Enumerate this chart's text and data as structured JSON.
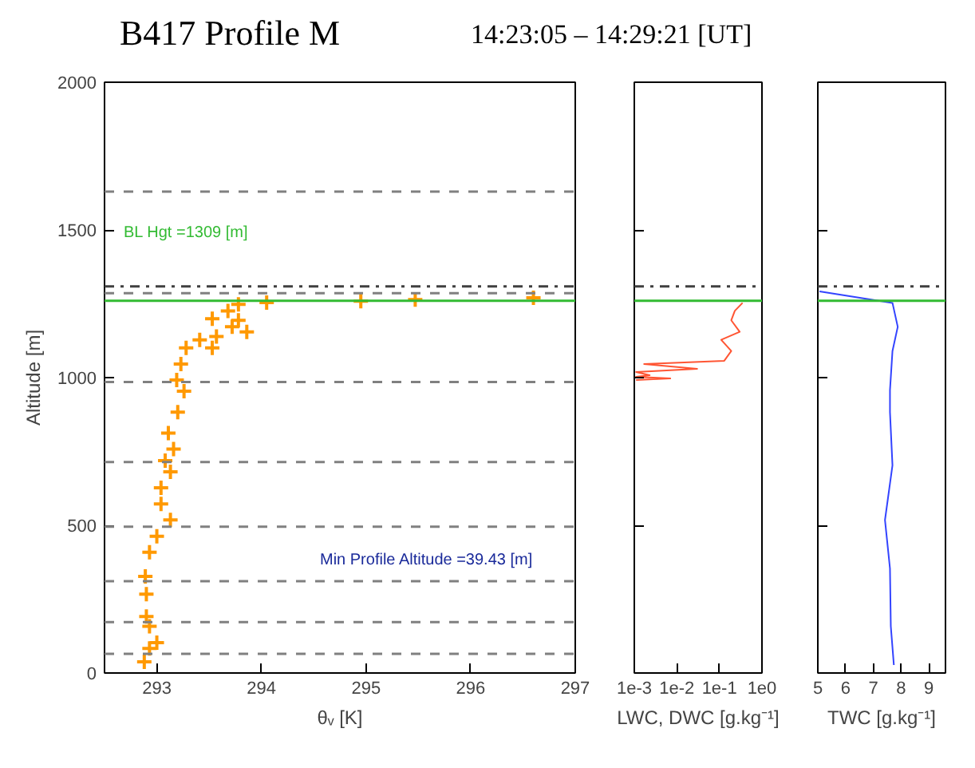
{
  "chart_data": [
    {
      "type": "scatter",
      "title": "B417 Profile M",
      "subtitle": "14:23:05 – 14:29:21 [UT]",
      "xlabel": "θᵥ [K]",
      "ylabel": "Altitude [m]",
      "marker": "cross",
      "grid": false,
      "xlim": [
        292.5,
        297
      ],
      "xticks": [
        293,
        294,
        295,
        296,
        297
      ],
      "ylim": [
        0,
        2000
      ],
      "yticks": [
        0,
        500,
        1000,
        1500,
        2000
      ],
      "series": [
        {
          "color": "#ff9900",
          "x": [
            292.88,
            292.93,
            293.0,
            292.93,
            292.9,
            292.9,
            292.89,
            292.93,
            293.0,
            293.13,
            293.04,
            293.04,
            293.13,
            293.08,
            293.16,
            293.11,
            293.2,
            293.26,
            293.19,
            293.23,
            293.28,
            293.41,
            293.53,
            293.57,
            293.72,
            293.86,
            293.78,
            293.53,
            293.68,
            293.78,
            294.05,
            294.95,
            295.47,
            296.6
          ],
          "values": [
            38,
            83,
            103,
            158,
            191,
            267,
            327,
            409,
            463,
            518,
            572,
            627,
            681,
            719,
            758,
            812,
            883,
            954,
            992,
            1046,
            1101,
            1128,
            1101,
            1139,
            1172,
            1155,
            1194,
            1199,
            1226,
            1248,
            1254,
            1259,
            1264,
            1270
          ]
        }
      ],
      "ref_lines": [
        {
          "axis": "y",
          "value": 65,
          "color": "#808080",
          "line_style": "dashed"
        },
        {
          "axis": "y",
          "value": 172,
          "color": "#808080",
          "line_style": "dashed"
        },
        {
          "axis": "y",
          "value": 311,
          "color": "#808080",
          "line_style": "dashed"
        },
        {
          "axis": "y",
          "value": 495,
          "color": "#808080",
          "line_style": "dashed"
        },
        {
          "axis": "y",
          "value": 714,
          "color": "#808080",
          "line_style": "dashed"
        },
        {
          "axis": "y",
          "value": 985,
          "color": "#808080",
          "line_style": "dashed"
        },
        {
          "axis": "y",
          "value": 1286,
          "color": "#808080",
          "line_style": "dashed"
        },
        {
          "axis": "y",
          "value": 1630,
          "color": "#808080",
          "line_style": "dashed"
        },
        {
          "axis": "y",
          "value": 1309,
          "color": "#404040",
          "line_style": "dashdot",
          "label": "BL Hgt =1309 [m]"
        },
        {
          "axis": "y",
          "value": 1260,
          "color": "#33bb33",
          "line_style": "solid"
        }
      ],
      "annotations": [
        "Min Profile Altitude =39.43 [m]"
      ]
    },
    {
      "type": "line",
      "xlabel": "LWC, DWC [g.kg⁻¹]",
      "log": "x",
      "tick_labels": "x",
      "grid": false,
      "xlim": [
        0.001,
        1
      ],
      "xticks": [
        {
          "value": 0.001,
          "label": "1e-3"
        },
        {
          "value": 0.01,
          "label": "1e-2"
        },
        {
          "value": 0.1,
          "label": "1e-1"
        },
        {
          "value": 1,
          "label": "1e0"
        }
      ],
      "ylim": [
        0,
        2000
      ],
      "yticks": [
        0,
        500,
        1000,
        1500,
        2000
      ],
      "series": [
        {
          "color": "#ff5533",
          "x": [
            0.35,
            0.23,
            0.19,
            0.3,
            0.11,
            0.19,
            0.13,
            0.0017,
            0.03,
            0.0011,
            0.0023,
            0.0011,
            0.007,
            0.0011
          ],
          "values": [
            1253,
            1226,
            1194,
            1155,
            1128,
            1090,
            1057,
            1046,
            1030,
            1019,
            1008,
            1003,
            997,
            992
          ]
        }
      ],
      "ref_lines": [
        {
          "axis": "y",
          "value": 1309,
          "color": "#404040",
          "line_style": "dashdot"
        },
        {
          "axis": "y",
          "value": 1260,
          "color": "#33bb33",
          "line_style": "solid"
        }
      ]
    },
    {
      "type": "line",
      "xlabel": "TWC [g.kg⁻¹]",
      "tick_labels": "x",
      "grid": false,
      "xlim": [
        5,
        9.6
      ],
      "xticks": [
        5,
        6,
        7,
        8,
        9
      ],
      "ylim": [
        0,
        2000
      ],
      "yticks": [
        0,
        500,
        1000,
        1500,
        2000
      ],
      "series": [
        {
          "color": "#3344ff",
          "x": [
            7.74,
            7.63,
            7.6,
            7.42,
            7.69,
            7.6,
            7.6,
            7.69,
            7.88,
            7.69,
            5.06
          ],
          "values": [
            27,
            158,
            354,
            518,
            703,
            883,
            957,
            1090,
            1172,
            1253,
            1292
          ]
        }
      ],
      "ref_lines": [
        {
          "axis": "y",
          "value": 1309,
          "color": "#404040",
          "line_style": "dashdot"
        },
        {
          "axis": "y",
          "value": 1260,
          "color": "#33bb33",
          "line_style": "solid"
        }
      ]
    }
  ]
}
